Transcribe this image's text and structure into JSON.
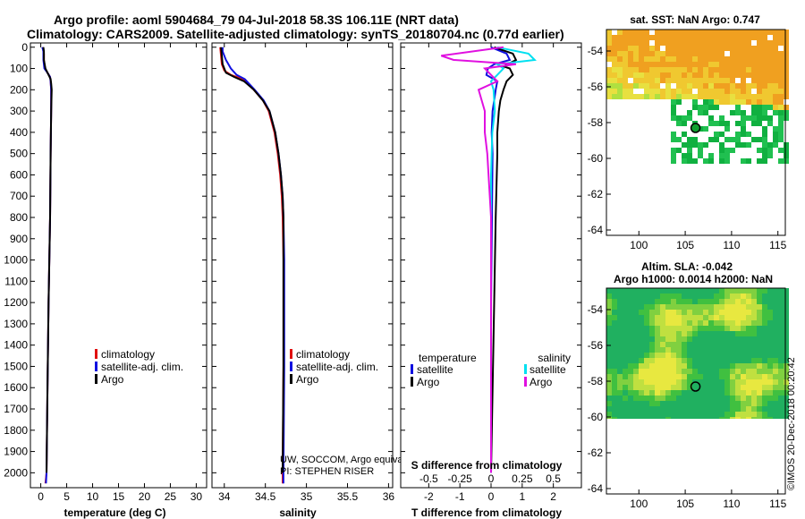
{
  "title_line1": "Argo profile: aoml 5904684_79 04-Jul-2018 58.3S 106.11E (NRT data)",
  "title_line2": "Climatology: CARS2009. Satellite-adjusted climatology: synTS_20180704.nc (0.77d earlier)",
  "depth_ticks": [
    0,
    100,
    200,
    300,
    400,
    500,
    600,
    700,
    800,
    900,
    1000,
    1100,
    1200,
    1300,
    1400,
    1500,
    1600,
    1700,
    1800,
    1900,
    2000
  ],
  "colors": {
    "climatology": "#e01010",
    "satellite": "#1010e0",
    "argo": "#000000",
    "satellite_s": "#00e0f0",
    "argo_s": "#e010e0"
  },
  "chart_data": [
    {
      "type": "line",
      "name": "temperature",
      "xlabel": "temperature (deg C)",
      "xlim": [
        -2,
        32
      ],
      "ylim": [
        2070,
        -20
      ],
      "xticks": [
        0,
        5,
        10,
        15,
        20,
        25,
        30
      ],
      "xtick_labels": [
        "0",
        "5",
        "10",
        "15",
        "20",
        "25",
        "30"
      ],
      "legend": [
        "climatology",
        "satellite-adj. clim.",
        "Argo"
      ],
      "series": [
        {
          "name": "climatology",
          "depth": [
            0,
            30,
            60,
            100,
            120,
            140,
            160,
            200,
            300,
            500,
            800,
            1200,
            1600,
            2000,
            2050
          ],
          "values": [
            0.4,
            0.6,
            0.6,
            0.8,
            1.3,
            1.8,
            1.9,
            2.0,
            2.0,
            1.9,
            1.8,
            1.5,
            1.3,
            1.1,
            0.9
          ]
        },
        {
          "name": "satellite-adj. clim.",
          "depth": [
            0,
            20,
            60,
            100,
            120,
            140,
            160,
            200,
            300,
            500,
            800,
            1200,
            1600,
            2000,
            2050
          ],
          "values": [
            0.3,
            0.5,
            0.5,
            0.7,
            1.3,
            1.8,
            1.9,
            2.0,
            2.0,
            1.9,
            1.8,
            1.5,
            1.3,
            1.1,
            1.0
          ]
        },
        {
          "name": "Argo",
          "depth": [
            0,
            20,
            60,
            100,
            130,
            150,
            170,
            200,
            300,
            500,
            800,
            1200,
            1600,
            2000
          ],
          "values": [
            0.5,
            0.6,
            0.6,
            0.9,
            1.5,
            1.9,
            2.0,
            2.1,
            2.0,
            1.9,
            1.8,
            1.5,
            1.3,
            1.1
          ]
        }
      ]
    },
    {
      "type": "line",
      "name": "salinity",
      "xlabel": "salinity",
      "xlim": [
        33.85,
        36.05
      ],
      "ylim": [
        2070,
        -20
      ],
      "xticks": [
        34,
        34.5,
        35,
        35.5,
        36
      ],
      "xtick_labels": [
        "34",
        "34.5",
        "35",
        "35.5",
        "36"
      ],
      "legend": [
        "climatology",
        "satellite-adj. clim.",
        "Argo"
      ],
      "annotations": [
        "UW, SOCCOM, Argo equivalent",
        "PI: STEPHEN RISER"
      ],
      "series": [
        {
          "name": "climatology",
          "depth": [
            0,
            40,
            80,
            110,
            130,
            150,
            200,
            250,
            300,
            400,
            500,
            600,
            700,
            800,
            1000,
            1500,
            2000,
            2050
          ],
          "values": [
            33.95,
            33.96,
            33.97,
            34.0,
            34.08,
            34.22,
            34.36,
            34.47,
            34.54,
            34.61,
            34.65,
            34.68,
            34.7,
            34.71,
            34.72,
            34.72,
            34.71,
            34.71
          ]
        },
        {
          "name": "satellite-adj. clim.",
          "depth": [
            0,
            20,
            60,
            100,
            130,
            150,
            200,
            250,
            300,
            400,
            500,
            600,
            700,
            800,
            1000,
            1500,
            2000,
            2050
          ],
          "values": [
            33.98,
            33.98,
            34.02,
            34.08,
            34.15,
            34.25,
            34.37,
            34.48,
            34.55,
            34.62,
            34.66,
            34.69,
            34.71,
            34.72,
            34.73,
            34.73,
            34.72,
            34.72
          ]
        },
        {
          "name": "Argo",
          "depth": [
            0,
            40,
            80,
            120,
            140,
            160,
            200,
            250,
            300,
            400,
            500,
            600,
            700,
            800,
            1000,
            1500,
            2000
          ],
          "values": [
            33.96,
            33.97,
            33.98,
            34.02,
            34.12,
            34.24,
            34.36,
            34.47,
            34.55,
            34.62,
            34.66,
            34.69,
            34.71,
            34.72,
            34.72,
            34.72,
            34.71
          ]
        }
      ]
    },
    {
      "type": "line",
      "name": "differences",
      "xlabel": "T difference from climatology",
      "xlabel_top": "S difference from climatology",
      "xlim": [
        -2.9,
        2.9
      ],
      "ylim": [
        2070,
        -20
      ],
      "xticks": [
        -2,
        -1,
        0,
        1,
        2
      ],
      "xtick_labels": [
        "-2",
        "-1",
        "0",
        "1",
        "2"
      ],
      "s_ticks": [
        -0.5,
        -0.25,
        0,
        0.25,
        0.5
      ],
      "s_tick_labels": [
        "-0.5",
        "-0.25",
        "0",
        "0.25",
        "0.5"
      ],
      "legend_temperature_title": "temperature",
      "legend_salinity_title": "salinity",
      "legend_temperature": [
        "satellite",
        "Argo"
      ],
      "legend_salinity": [
        "satellite",
        "Argo"
      ],
      "series": [
        {
          "name": "T satellite",
          "depth": [
            0,
            30,
            60,
            80,
            100,
            130,
            160,
            200,
            250,
            300,
            400,
            500,
            800,
            1200,
            2000
          ],
          "values": [
            0.0,
            0.5,
            0.6,
            0.1,
            -0.1,
            -0.15,
            0.2,
            0.15,
            0.1,
            0.05,
            0.02,
            0.05,
            0.03,
            0.0,
            0.0
          ]
        },
        {
          "name": "T Argo",
          "depth": [
            0,
            30,
            60,
            90,
            100,
            130,
            160,
            200,
            250,
            300,
            400,
            500,
            800,
            1200,
            2000
          ],
          "values": [
            0.1,
            0.7,
            0.8,
            0.4,
            0.6,
            0.7,
            0.5,
            0.4,
            0.3,
            0.25,
            0.2,
            0.2,
            0.15,
            0.1,
            0.0
          ]
        },
        {
          "name": "S satellite",
          "depth": [
            0,
            30,
            60,
            80,
            100,
            130,
            160,
            200,
            300,
            400,
            600,
            800,
            1200,
            2000
          ],
          "values": [
            0.05,
            0.3,
            0.35,
            0.05,
            0.1,
            0.05,
            0.0,
            0.02,
            0.03,
            0.01,
            0.0,
            0.0,
            0.0,
            0.0
          ]
        },
        {
          "name": "S Argo",
          "depth": [
            0,
            40,
            60,
            80,
            100,
            130,
            160,
            200,
            300,
            400,
            500,
            800,
            2000
          ],
          "values": [
            0.1,
            -0.4,
            -0.3,
            0.2,
            -0.05,
            0.0,
            0.05,
            -0.1,
            -0.05,
            -0.05,
            -0.03,
            0.0,
            0.0
          ]
        }
      ]
    }
  ],
  "map_sst": {
    "title": "sat. SST: NaN Argo: 0.747",
    "xticks": [
      100,
      105,
      110,
      115
    ],
    "xtick_labels": [
      "100",
      "105",
      "110",
      "115"
    ],
    "yticks": [
      -54,
      -56,
      -58,
      -60,
      -62,
      -64
    ],
    "ytick_labels": [
      "-54",
      "-56",
      "-58",
      "-60",
      "-62",
      "-64"
    ],
    "xlim": [
      96.5,
      115.8
    ],
    "ylim": [
      -64.3,
      -52.8
    ],
    "argo_position": {
      "lon": 106.11,
      "lat": -58.3
    }
  },
  "map_sla": {
    "title1": "Altim. SLA: -0.042",
    "title2": "Argo h1000: 0.0014 h2000: NaN",
    "xticks": [
      100,
      105,
      110,
      115
    ],
    "xtick_labels": [
      "100",
      "105",
      "110",
      "115"
    ],
    "yticks": [
      -54,
      -56,
      -58,
      -60,
      -62,
      -64
    ],
    "ytick_labels": [
      "-54",
      "-56",
      "-58",
      "-60",
      "-62",
      "-64"
    ],
    "xlim": [
      96.5,
      115.8
    ],
    "ylim": [
      -64.3,
      -52.8
    ],
    "data_bottom_lat": -60.1,
    "argo_position": {
      "lon": 106.11,
      "lat": -58.3
    }
  },
  "credit": "©IMOS 20-Dec-2018 00:20:42"
}
